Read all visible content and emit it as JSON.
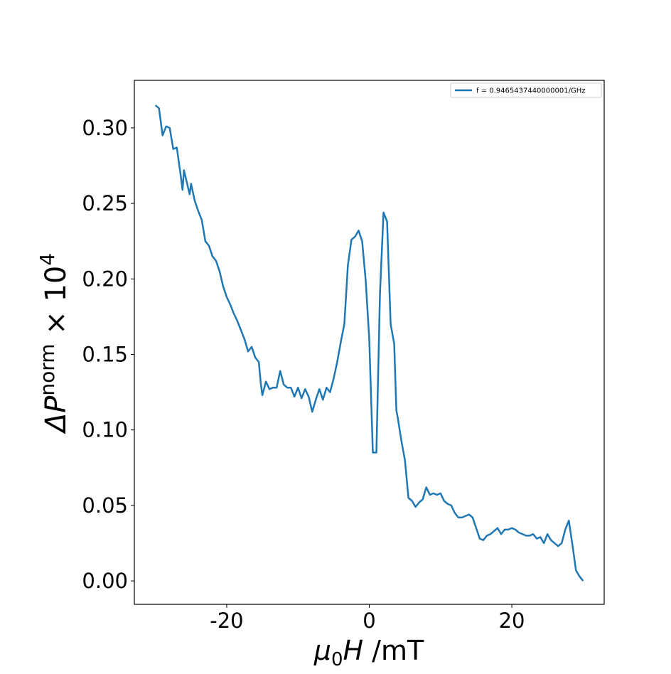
{
  "chart_data": {
    "type": "line",
    "x_label": {
      "symbol": "μ",
      "subscript": "0",
      "variable": "H",
      "unit": " /mT"
    },
    "y_label": {
      "base": "ΔP",
      "superscript": "norm",
      "times": " × 10",
      "exponent": "4"
    },
    "xlim": [
      -32.96,
      32.96
    ],
    "ylim": [
      -0.0155,
      0.3315
    ],
    "xticks": [
      -20,
      0,
      20
    ],
    "yticks": [
      {
        "value": 0,
        "label": "0.00"
      },
      {
        "value": 0.05,
        "label": "0.05"
      },
      {
        "value": 0.1,
        "label": "0.10"
      },
      {
        "value": 0.15,
        "label": "0.15"
      },
      {
        "value": 0.2,
        "label": "0.20"
      },
      {
        "value": 0.25,
        "label": "0.25"
      },
      {
        "value": 0.3,
        "label": "0.30"
      }
    ],
    "legend": "upper right",
    "x": [
      -30,
      -29.5,
      -29,
      -28.5,
      -28,
      -27.5,
      -27,
      -26.5,
      -26.2,
      -26,
      -25.5,
      -25.2,
      -25,
      -24.5,
      -24,
      -23.5,
      -23,
      -22.5,
      -22,
      -21.5,
      -21,
      -20.5,
      -20,
      -19.5,
      -19,
      -18.5,
      -18,
      -17.5,
      -17,
      -16.5,
      -16,
      -15.5,
      -15.2,
      -15,
      -14.5,
      -14,
      -13.5,
      -13,
      -12.5,
      -12,
      -11.5,
      -11,
      -10.5,
      -10,
      -9.5,
      -9,
      -8.5,
      -8,
      -7.5,
      -7,
      -6.5,
      -6,
      -5.5,
      -5,
      -4.5,
      -4,
      -3.5,
      -3,
      -2.5,
      -2,
      -1.5,
      -1,
      -0.5,
      0,
      0.5,
      1,
      1.5,
      2,
      2.5,
      3,
      3.5,
      3.8,
      4,
      4.5,
      5,
      5.5,
      6,
      6.5,
      7,
      7.5,
      8,
      8.5,
      9,
      9.5,
      10,
      10.5,
      11,
      11.5,
      12,
      12.5,
      13,
      13.5,
      14,
      14.5,
      15,
      15.5,
      16,
      16.5,
      17,
      17.5,
      18,
      18.5,
      19,
      19.5,
      20,
      20.5,
      21,
      21.5,
      22,
      22.5,
      23,
      23.5,
      24,
      24.5,
      25,
      25.5,
      26,
      26.5,
      27,
      27.5,
      28,
      28.5,
      29,
      29.5,
      30
    ],
    "series": [
      {
        "name": "f = 0.9465437440000001/GHz",
        "color": "#1f77b4",
        "values": [
          0.315,
          0.313,
          0.295,
          0.301,
          0.3,
          0.286,
          0.287,
          0.27,
          0.259,
          0.272,
          0.262,
          0.256,
          0.263,
          0.252,
          0.245,
          0.239,
          0.225,
          0.222,
          0.215,
          0.212,
          0.205,
          0.195,
          0.188,
          0.183,
          0.177,
          0.172,
          0.166,
          0.16,
          0.152,
          0.155,
          0.148,
          0.145,
          0.13,
          0.123,
          0.132,
          0.127,
          0.128,
          0.128,
          0.139,
          0.13,
          0.128,
          0.128,
          0.122,
          0.128,
          0.121,
          0.127,
          0.122,
          0.112,
          0.12,
          0.127,
          0.12,
          0.128,
          0.125,
          0.134,
          0.145,
          0.158,
          0.17,
          0.209,
          0.226,
          0.228,
          0.232,
          0.225,
          0.199,
          0.16,
          0.085,
          0.085,
          0.19,
          0.244,
          0.238,
          0.17,
          0.157,
          0.113,
          0.108,
          0.093,
          0.08,
          0.055,
          0.053,
          0.049,
          0.052,
          0.054,
          0.062,
          0.057,
          0.058,
          0.057,
          0.058,
          0.053,
          0.051,
          0.05,
          0.045,
          0.042,
          0.042,
          0.043,
          0.044,
          0.042,
          0.035,
          0.028,
          0.027,
          0.03,
          0.031,
          0.033,
          0.035,
          0.031,
          0.034,
          0.034,
          0.035,
          0.034,
          0.032,
          0.031,
          0.03,
          0.03,
          0.031,
          0.028,
          0.029,
          0.025,
          0.031,
          0.027,
          0.025,
          0.023,
          0.025,
          0.034,
          0.04,
          0.024,
          0.007,
          0.003,
          0.0
        ]
      }
    ]
  }
}
